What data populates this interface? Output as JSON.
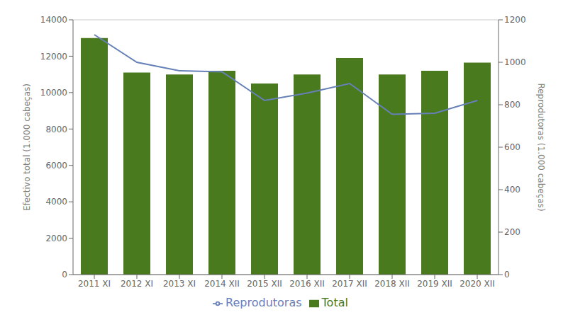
{
  "chart_data": {
    "type": "bar",
    "categories": [
      "2011 XI",
      "2012 XI",
      "2013 XI",
      "2014 XII",
      "2015 XII",
      "2016 XII",
      "2017 XII",
      "2018 XII",
      "2019 XII",
      "2020 XII"
    ],
    "series": [
      {
        "name": "Total",
        "type": "bar",
        "color": "#4a7a1e",
        "values": [
          13000,
          11100,
          11000,
          11200,
          10500,
          11000,
          11900,
          11000,
          11200,
          11650
        ]
      },
      {
        "name": "Reprodutoras",
        "type": "line",
        "axis": "y2",
        "color": "#6680b8",
        "values": [
          1130,
          1000,
          960,
          955,
          820,
          855,
          900,
          755,
          760,
          820
        ]
      }
    ],
    "y_label": "Efectivo total (1.000 cabeças)",
    "y2_label": "Reprodutoras (1.000 cabeças)",
    "ylim": [
      0,
      14000
    ],
    "yticks": [
      0,
      2000,
      4000,
      6000,
      8000,
      10000,
      12000,
      14000
    ],
    "y2lim": [
      0,
      1200
    ],
    "y2ticks": [
      0,
      200,
      400,
      600,
      800,
      1000,
      1200
    ],
    "grid": true,
    "legend": "bottom"
  }
}
